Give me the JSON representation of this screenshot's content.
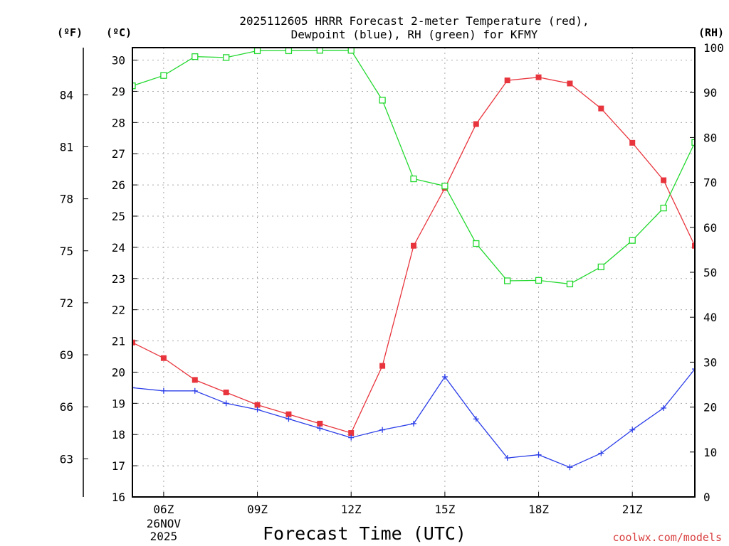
{
  "chart_data": {
    "type": "line",
    "title_line1": "2025112605 HRRR Forecast 2-meter Temperature (red),",
    "title_line2": "Dewpoint (blue), RH (green) for KFMY",
    "xlabel": "Forecast Time (UTC)",
    "credit": "coolwx.com/models",
    "unit_labels": {
      "fahrenheit": "(ºF)",
      "celsius": "(ºC)",
      "rh": "(RH)"
    },
    "x_hours": [
      5,
      6,
      7,
      8,
      9,
      10,
      11,
      12,
      13,
      14,
      15,
      16,
      17,
      18,
      19,
      20,
      21,
      22,
      23
    ],
    "xlim": [
      5,
      23
    ],
    "x_ticks": [
      {
        "hour": 6,
        "label": "06Z",
        "sub1": "26NOV",
        "sub2": "2025"
      },
      {
        "hour": 9,
        "label": "09Z"
      },
      {
        "hour": 12,
        "label": "12Z"
      },
      {
        "hour": 15,
        "label": "15Z"
      },
      {
        "hour": 18,
        "label": "18Z"
      },
      {
        "hour": 21,
        "label": "21Z"
      }
    ],
    "ylim_celsius": [
      16,
      30.4
    ],
    "celsius_ticks": [
      16,
      17,
      18,
      19,
      20,
      21,
      22,
      23,
      24,
      25,
      26,
      27,
      28,
      29,
      30
    ],
    "fahrenheit_ticks": [
      63,
      66,
      69,
      72,
      75,
      78,
      81,
      84
    ],
    "ylim_rh": [
      0,
      100
    ],
    "rh_ticks": [
      0,
      10,
      20,
      30,
      40,
      50,
      60,
      70,
      80,
      90,
      100
    ],
    "grid": true,
    "series": [
      {
        "name": "2-meter Temperature",
        "axis": "celsius",
        "color": "#e8343c",
        "marker": "filled-square",
        "values": [
          20.95,
          20.45,
          19.75,
          19.35,
          18.95,
          18.65,
          18.35,
          18.05,
          20.2,
          24.05,
          25.9,
          27.95,
          29.35,
          29.45,
          29.25,
          28.45,
          27.35,
          26.15,
          24.05
        ]
      },
      {
        "name": "Dewpoint",
        "axis": "celsius",
        "color": "#2b3ee8",
        "marker": "plus",
        "values": [
          19.5,
          19.4,
          19.4,
          19.0,
          18.8,
          18.5,
          18.2,
          17.9,
          18.15,
          18.35,
          19.85,
          18.5,
          17.25,
          17.35,
          16.95,
          17.4,
          18.15,
          18.85,
          20.1
        ]
      },
      {
        "name": "Relative Humidity",
        "axis": "rh",
        "color": "#22d82e",
        "marker": "open-square",
        "values": [
          91.5,
          93.8,
          98.0,
          97.8,
          99.3,
          99.3,
          99.4,
          99.4,
          88.3,
          70.8,
          69.2,
          56.4,
          48.1,
          48.2,
          47.4,
          51.2,
          57.1,
          64.3,
          78.9
        ]
      }
    ]
  }
}
